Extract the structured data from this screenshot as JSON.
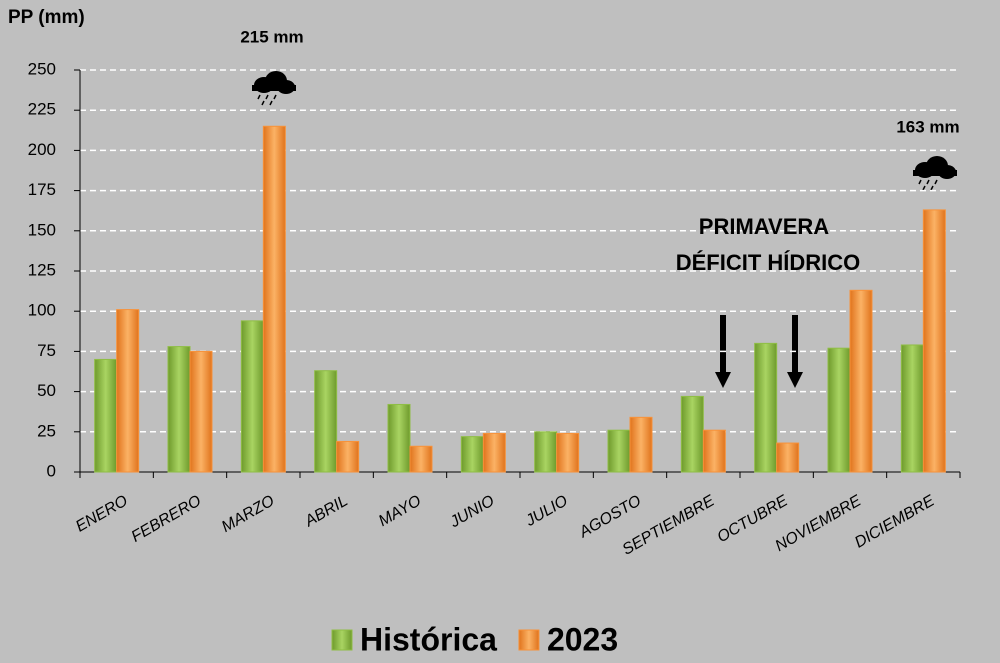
{
  "chart_data": {
    "type": "bar",
    "y_label": "PP (mm)",
    "categories": [
      "ENERO",
      "FEBRERO",
      "MARZO",
      "ABRIL",
      "MAYO",
      "JUNIO",
      "JULIO",
      "AGOSTO",
      "SEPTIEMBRE",
      "OCTUBRE",
      "NOVIEMBRE",
      "DICIEMBRE"
    ],
    "series": [
      {
        "name": "Histórica",
        "color": "#8fbe45",
        "values": [
          70,
          78,
          94,
          63,
          42,
          22,
          25,
          26,
          47,
          80,
          77,
          79
        ]
      },
      {
        "name": "2023",
        "color": "#f7923a",
        "values": [
          101,
          75,
          215,
          19,
          16,
          24,
          24,
          34,
          26,
          18,
          113,
          163
        ]
      }
    ],
    "ylim": [
      0,
      250
    ],
    "yticks": [
      0,
      25,
      50,
      75,
      100,
      125,
      150,
      175,
      200,
      225,
      250
    ],
    "grid": true,
    "annotations": [
      "215 mm",
      "163 mm",
      "PRIMAVERA",
      "DÉFICIT HÍDRICO"
    ]
  }
}
